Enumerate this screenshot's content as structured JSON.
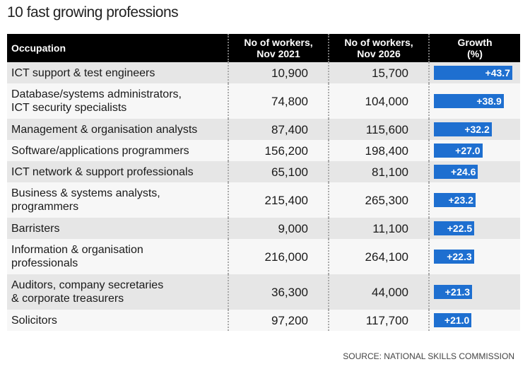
{
  "title": "10 fast growing professions",
  "source": "SOURCE: NATIONAL SKILLS COMMISSION",
  "colors": {
    "bar": "#1e6fd0",
    "header": "#000000"
  },
  "chart_data": {
    "type": "table",
    "title": "10 fast growing professions",
    "columns": [
      "Occupation",
      "No of workers, Nov 2021",
      "No of workers, Nov 2026",
      "Growth (%)"
    ],
    "header": {
      "occupation": "Occupation",
      "col2a": "No of workers,",
      "col2b": "Nov 2021",
      "col3a": "No of workers,",
      "col3b": "Nov 2026",
      "col4a": "Growth",
      "col4b": "(%)"
    },
    "rows": [
      {
        "occ1": "ICT support & test engineers",
        "occ2": "",
        "nov2021": "10,900",
        "nov2026": "15,700",
        "growth": 43.7,
        "growth_label": "+43.7"
      },
      {
        "occ1": "Database/systems administrators,",
        "occ2": "ICT security specialists",
        "nov2021": "74,800",
        "nov2026": "104,000",
        "growth": 38.9,
        "growth_label": "+38.9"
      },
      {
        "occ1": "Management & organisation analysts",
        "occ2": "",
        "nov2021": "87,400",
        "nov2026": "115,600",
        "growth": 32.2,
        "growth_label": "+32.2"
      },
      {
        "occ1": "Software/applications programmers",
        "occ2": "",
        "nov2021": "156,200",
        "nov2026": "198,400",
        "growth": 27.0,
        "growth_label": "+27.0"
      },
      {
        "occ1": "ICT network & support professionals",
        "occ2": "",
        "nov2021": "65,100",
        "nov2026": "81,100",
        "growth": 24.6,
        "growth_label": "+24.6"
      },
      {
        "occ1": "Business & systems analysts,",
        "occ2": "programmers",
        "nov2021": "215,400",
        "nov2026": "265,300",
        "growth": 23.2,
        "growth_label": "+23.2"
      },
      {
        "occ1": "Barristers",
        "occ2": "",
        "nov2021": "9,000",
        "nov2026": "11,100",
        "growth": 22.5,
        "growth_label": "+22.5"
      },
      {
        "occ1": "Information & organisation",
        "occ2": "professionals",
        "nov2021": "216,000",
        "nov2026": "264,100",
        "growth": 22.3,
        "growth_label": "+22.3"
      },
      {
        "occ1": "Auditors, company secretaries",
        "occ2": "& corporate treasurers",
        "nov2021": "36,300",
        "nov2026": "44,000",
        "growth": 21.3,
        "growth_label": "+21.3"
      },
      {
        "occ1": "Solicitors",
        "occ2": "",
        "nov2021": "97,200",
        "nov2026": "117,700",
        "growth": 21.0,
        "growth_label": "+21.0"
      }
    ]
  }
}
